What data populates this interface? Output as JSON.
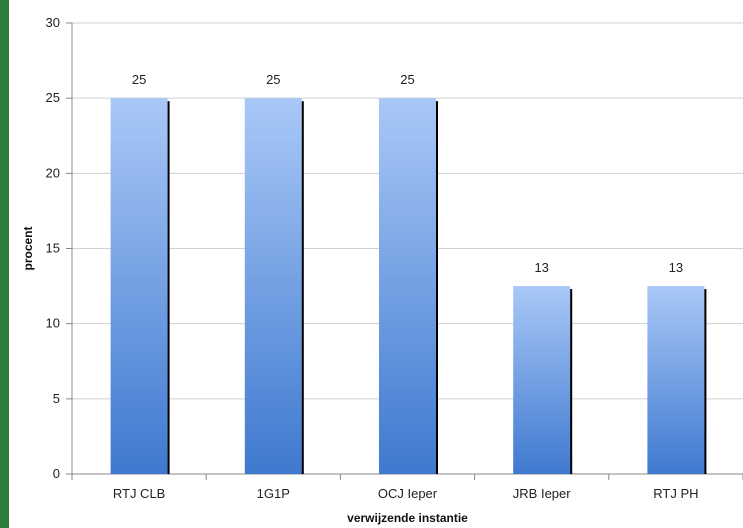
{
  "chart_data": {
    "type": "bar",
    "categories": [
      "RTJ CLB",
      "1G1P",
      "OCJ Ieper",
      "JRB Ieper",
      "RTJ PH"
    ],
    "values": [
      25,
      25,
      25,
      12.5,
      12.5
    ],
    "data_labels": [
      "25",
      "25",
      "25",
      "13",
      "13"
    ],
    "title": "",
    "xlabel": "verwijzende instantie",
    "ylabel": "procent",
    "ylim": [
      0,
      30
    ],
    "yticks": [
      0,
      5,
      10,
      15,
      20,
      25,
      30
    ],
    "grid": true,
    "legend": "none",
    "colors": {
      "bar_top": "#a9c8f7",
      "bar_bottom": "#3f79cf",
      "bar_shadow": "#000000",
      "grid": "#d0d0d0",
      "axis": "#888888",
      "frame_accent": "#2e7d3a"
    }
  }
}
